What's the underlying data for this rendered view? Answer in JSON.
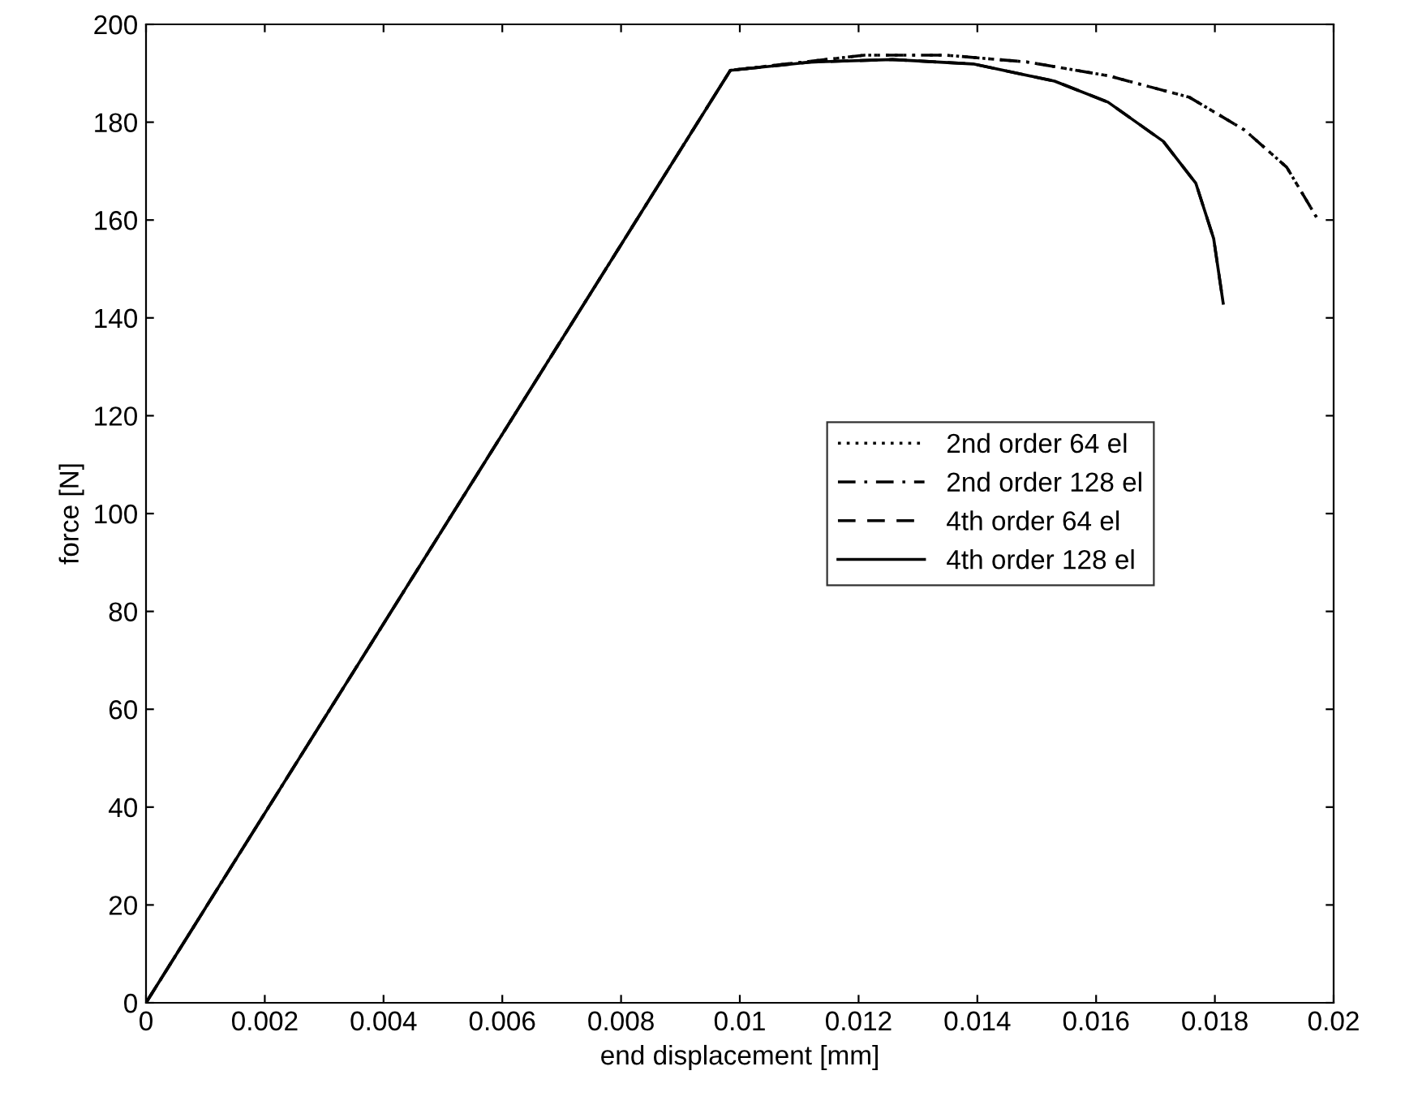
{
  "chart_data": {
    "type": "line",
    "xlabel": "end displacement [mm]",
    "ylabel": "force [N]",
    "xlim": [
      0,
      0.02
    ],
    "ylim": [
      0,
      200
    ],
    "xticks": [
      0,
      0.002,
      0.004,
      0.006,
      0.008,
      0.01,
      0.012,
      0.014,
      0.016,
      0.018,
      0.02
    ],
    "yticks": [
      0,
      20,
      40,
      60,
      80,
      100,
      120,
      140,
      160,
      180,
      200
    ],
    "grid": false,
    "legend": "right",
    "marker": "none",
    "series": [
      {
        "name": "2nd order 64 el",
        "color": "#000000",
        "line_style": "dotted",
        "x": [
          0,
          0.00984,
          0.0121,
          0.01347,
          0.01484,
          0.0162,
          0.01757,
          0.0185,
          0.01921,
          0.01973
        ],
        "values": [
          0,
          190.6,
          193.7,
          193.7,
          192.3,
          189.5,
          185.1,
          178.4,
          170.8,
          160.2
        ]
      },
      {
        "name": "2nd order 128 el",
        "color": "#000000",
        "line_style": "dashdot",
        "x": [
          0,
          0.00984,
          0.0121,
          0.01347,
          0.01484,
          0.0162,
          0.01757,
          0.0185,
          0.01921,
          0.01973
        ],
        "values": [
          0,
          190.6,
          193.7,
          193.7,
          192.3,
          189.5,
          185.1,
          178.4,
          170.8,
          160.2
        ]
      },
      {
        "name": "4th order 64 el",
        "color": "#000000",
        "line_style": "dashed",
        "x": [
          0,
          0.00984,
          0.0112,
          0.01257,
          0.01393,
          0.0153,
          0.0162,
          0.01713,
          0.01768,
          0.01798,
          0.01814
        ],
        "values": [
          0,
          190.6,
          192.3,
          192.8,
          191.9,
          188.4,
          184.1,
          176.1,
          167.5,
          156.2,
          143.0
        ]
      },
      {
        "name": "4th order 128 el",
        "color": "#000000",
        "line_style": "solid",
        "x": [
          0,
          0.00984,
          0.0112,
          0.01257,
          0.01393,
          0.0153,
          0.0162,
          0.01713,
          0.01768,
          0.01798,
          0.01814
        ],
        "values": [
          0,
          190.6,
          192.3,
          192.8,
          191.9,
          188.4,
          184.1,
          176.1,
          167.5,
          156.2,
          143.0
        ]
      }
    ]
  }
}
